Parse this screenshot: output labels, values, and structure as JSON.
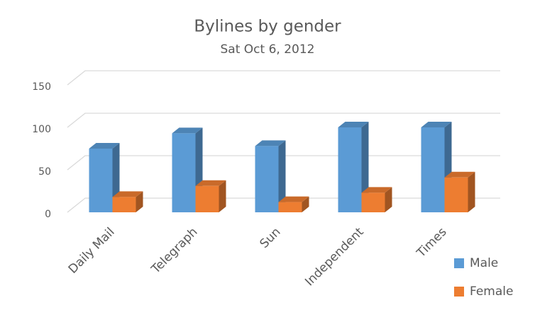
{
  "chart_data": {
    "type": "bar3d",
    "title": "Bylines by gender",
    "subtitle": "Sat Oct 6, 2012",
    "categories": [
      "Daily Mail",
      "Telegraph",
      "Sun",
      "Independent",
      "Times"
    ],
    "series": [
      {
        "name": "Male",
        "color": "#5b9bd5",
        "values": [
          75,
          93,
          78,
          100,
          100
        ]
      },
      {
        "name": "Female",
        "color": "#ed7d31",
        "values": [
          18,
          31,
          12,
          23,
          41
        ]
      }
    ],
    "ylim": [
      0,
      150
    ],
    "yticks": [
      0,
      50,
      100,
      150
    ],
    "grid": true,
    "legend": "right"
  }
}
